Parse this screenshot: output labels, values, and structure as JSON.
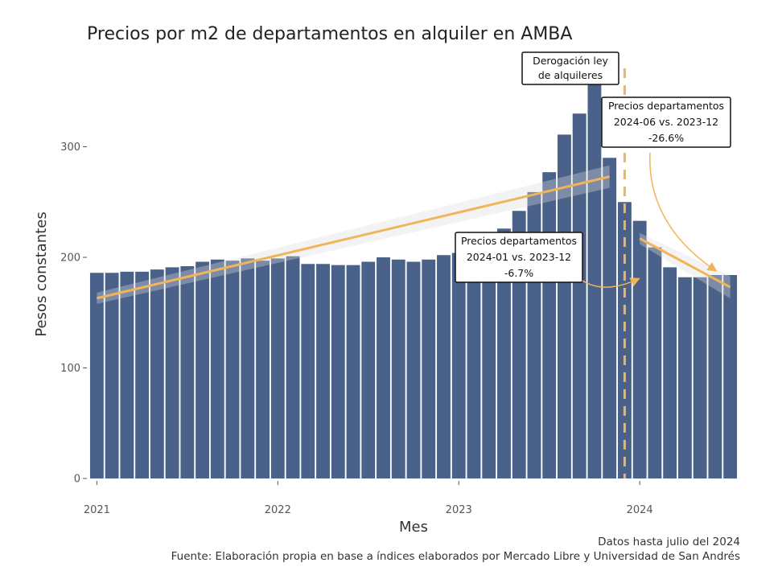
{
  "chart_data": {
    "type": "bar",
    "title": "Precios por m2 de departamentos en alquiler en AMBA",
    "xlabel": "Mes",
    "ylabel": "Pesos constantes",
    "ylim": [
      0,
      360
    ],
    "yticks": [
      0,
      100,
      200,
      300
    ],
    "xticks": [
      "2021",
      "2022",
      "2023",
      "2024"
    ],
    "bar_color": "#4a6189",
    "trend_color": "#f0b55a",
    "grid": false,
    "series": [
      {
        "name": "",
        "x": [
          "2021-01",
          "2021-02",
          "2021-03",
          "2021-04",
          "2021-05",
          "2021-06",
          "2021-07",
          "2021-08",
          "2021-09",
          "2021-10",
          "2021-11",
          "2021-12",
          "2022-01",
          "2022-02",
          "2022-03",
          "2022-04",
          "2022-05",
          "2022-06",
          "2022-07",
          "2022-08",
          "2022-09",
          "2022-10",
          "2022-11",
          "2022-12",
          "2023-01",
          "2023-02",
          "2023-03",
          "2023-04",
          "2023-05",
          "2023-06",
          "2023-07",
          "2023-08",
          "2023-09",
          "2023-10",
          "2023-11",
          "2023-12",
          "2024-01",
          "2024-02",
          "2024-03",
          "2024-04",
          "2024-05",
          "2024-06",
          "2024-07"
        ],
        "values": [
          186,
          186,
          187,
          187,
          189,
          191,
          192,
          196,
          198,
          197,
          199,
          197,
          199,
          201,
          194,
          194,
          193,
          193,
          196,
          200,
          198,
          196,
          198,
          202,
          204,
          205,
          211,
          226,
          242,
          259,
          277,
          311,
          330,
          360,
          290,
          250,
          233,
          209,
          191,
          182,
          182,
          184,
          184
        ]
      }
    ],
    "trendlines": [
      {
        "from": [
          "2021-01",
          163
        ],
        "to": [
          "2023-11",
          273
        ]
      },
      {
        "from": [
          "2024-01",
          217
        ],
        "to": [
          "2024-07",
          173
        ]
      }
    ],
    "vline_at": "2023-12",
    "annotations": [
      {
        "id": "derogacion",
        "lines": [
          "Derogación ley",
          "de alquileres"
        ]
      },
      {
        "id": "var-jun",
        "lines": [
          "Precios departamentos",
          "2024-06 vs. 2023-12",
          "-26.6%"
        ]
      },
      {
        "id": "var-ene",
        "lines": [
          "Precios departamentos",
          "2024-01 vs. 2023-12",
          "-6.7%"
        ]
      }
    ]
  },
  "footer": {
    "datos": "Datos hasta julio del 2024",
    "fuente": "Fuente: Elaboración propia en base a índices elaborados por Mercado Libre y Universidad de San Andrés"
  }
}
